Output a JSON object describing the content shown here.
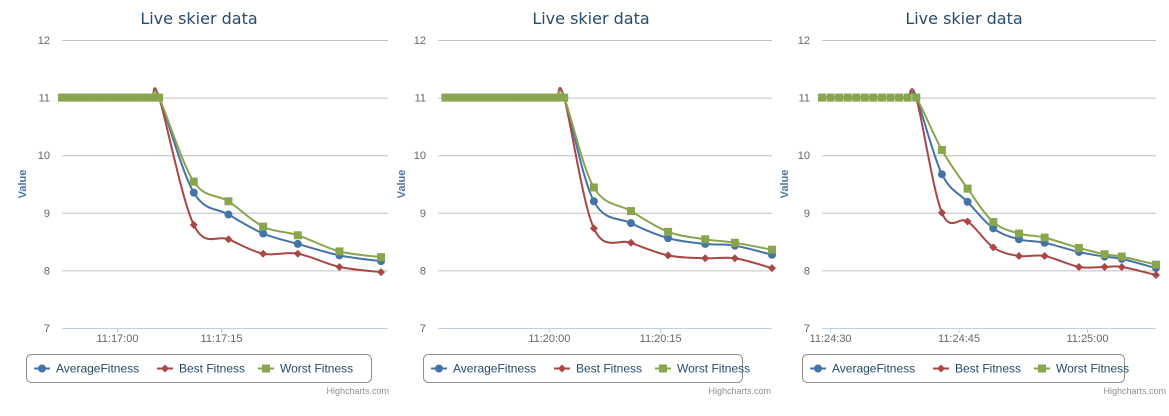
{
  "colors": {
    "average": "#4572a7",
    "best": "#aa4643",
    "worst": "#89a54e"
  },
  "chart_data": [
    {
      "type": "line",
      "title": "Live skier data",
      "ylabel": "Value",
      "ylim": [
        7,
        12
      ],
      "yticks": [
        "7",
        "8",
        "9",
        "10",
        "11",
        "12"
      ],
      "xlim": [
        "11:16:52",
        "11:17:39"
      ],
      "xticks": [
        {
          "t": "11:17:00",
          "label": "11:17:00"
        },
        {
          "t": "11:17:15",
          "label": "11:17:15"
        }
      ],
      "legend": "bottom",
      "credits": "Highcharts.com",
      "series": [
        {
          "name": "AverageFitness",
          "marker": "circle",
          "color": "#4572a7",
          "points": [
            [
              "11:16:52",
              11
            ],
            [
              "11:16:53",
              11
            ],
            [
              "11:16:54",
              11
            ],
            [
              "11:16:55",
              11
            ],
            [
              "11:16:56",
              11
            ],
            [
              "11:16:57",
              11
            ],
            [
              "11:16:58",
              11
            ],
            [
              "11:16:59",
              11
            ],
            [
              "11:17:00",
              11
            ],
            [
              "11:17:01",
              11
            ],
            [
              "11:17:02",
              11
            ],
            [
              "11:17:03",
              11
            ],
            [
              "11:17:04",
              11
            ],
            [
              "11:17:05",
              11
            ],
            [
              "11:17:06",
              11
            ],
            [
              "11:17:11",
              9.35
            ],
            [
              "11:17:16",
              8.97
            ],
            [
              "11:17:21",
              8.64
            ],
            [
              "11:17:26",
              8.46
            ],
            [
              "11:17:32",
              8.26
            ],
            [
              "11:17:38",
              8.16
            ]
          ]
        },
        {
          "name": "Best Fitness",
          "marker": "diamond",
          "color": "#aa4643",
          "points": [
            [
              "11:16:52",
              11
            ],
            [
              "11:16:53",
              11
            ],
            [
              "11:16:54",
              11
            ],
            [
              "11:16:55",
              11
            ],
            [
              "11:16:56",
              11
            ],
            [
              "11:16:57",
              11
            ],
            [
              "11:16:58",
              11
            ],
            [
              "11:16:59",
              11
            ],
            [
              "11:17:00",
              11
            ],
            [
              "11:17:01",
              11
            ],
            [
              "11:17:02",
              11
            ],
            [
              "11:17:03",
              11
            ],
            [
              "11:17:04",
              11
            ],
            [
              "11:17:05",
              11
            ],
            [
              "11:17:06",
              11
            ],
            [
              "11:17:11",
              8.79
            ],
            [
              "11:17:16",
              8.54
            ],
            [
              "11:17:21",
              8.29
            ],
            [
              "11:17:26",
              8.29
            ],
            [
              "11:17:32",
              8.06
            ],
            [
              "11:17:38",
              7.97
            ]
          ]
        },
        {
          "name": "Worst Fitness",
          "marker": "square",
          "color": "#89a54e",
          "points": [
            [
              "11:16:52",
              11
            ],
            [
              "11:16:53",
              11
            ],
            [
              "11:16:54",
              11
            ],
            [
              "11:16:55",
              11
            ],
            [
              "11:16:56",
              11
            ],
            [
              "11:16:57",
              11
            ],
            [
              "11:16:58",
              11
            ],
            [
              "11:16:59",
              11
            ],
            [
              "11:17:00",
              11
            ],
            [
              "11:17:01",
              11
            ],
            [
              "11:17:02",
              11
            ],
            [
              "11:17:03",
              11
            ],
            [
              "11:17:04",
              11
            ],
            [
              "11:17:05",
              11
            ],
            [
              "11:17:06",
              11
            ],
            [
              "11:17:11",
              9.54
            ],
            [
              "11:17:16",
              9.2
            ],
            [
              "11:17:21",
              8.76
            ],
            [
              "11:17:26",
              8.61
            ],
            [
              "11:17:32",
              8.33
            ],
            [
              "11:17:38",
              8.23
            ]
          ]
        }
      ]
    },
    {
      "type": "line",
      "title": "Live skier data",
      "ylabel": "Value",
      "ylim": [
        7,
        12
      ],
      "yticks": [
        "7",
        "8",
        "9",
        "10",
        "11",
        "12"
      ],
      "xlim": [
        "11:19:45",
        "11:20:30"
      ],
      "xticks": [
        {
          "t": "11:20:00",
          "label": "11:20:00"
        },
        {
          "t": "11:20:15",
          "label": "11:20:15"
        }
      ],
      "legend": "bottom",
      "credits": "Highcharts.com",
      "series": [
        {
          "name": "AverageFitness",
          "marker": "circle",
          "color": "#4572a7",
          "points": [
            [
              "11:19:46",
              11
            ],
            [
              "11:19:47",
              11
            ],
            [
              "11:19:48",
              11
            ],
            [
              "11:19:49",
              11
            ],
            [
              "11:19:50",
              11
            ],
            [
              "11:19:51",
              11
            ],
            [
              "11:19:52",
              11
            ],
            [
              "11:19:53",
              11
            ],
            [
              "11:19:54",
              11
            ],
            [
              "11:19:55",
              11
            ],
            [
              "11:19:56",
              11
            ],
            [
              "11:19:57",
              11
            ],
            [
              "11:19:58",
              11
            ],
            [
              "11:19:59",
              11
            ],
            [
              "11:20:00",
              11
            ],
            [
              "11:20:01",
              11
            ],
            [
              "11:20:02",
              11
            ],
            [
              "11:20:06",
              9.2
            ],
            [
              "11:20:11",
              8.82
            ],
            [
              "11:20:16",
              8.56
            ],
            [
              "11:20:21",
              8.46
            ],
            [
              "11:20:25",
              8.43
            ],
            [
              "11:20:30",
              8.27
            ]
          ]
        },
        {
          "name": "Best Fitness",
          "marker": "diamond",
          "color": "#aa4643",
          "points": [
            [
              "11:19:46",
              11
            ],
            [
              "11:19:47",
              11
            ],
            [
              "11:19:48",
              11
            ],
            [
              "11:19:49",
              11
            ],
            [
              "11:19:50",
              11
            ],
            [
              "11:19:51",
              11
            ],
            [
              "11:19:52",
              11
            ],
            [
              "11:19:53",
              11
            ],
            [
              "11:19:54",
              11
            ],
            [
              "11:19:55",
              11
            ],
            [
              "11:19:56",
              11
            ],
            [
              "11:19:57",
              11
            ],
            [
              "11:19:58",
              11
            ],
            [
              "11:19:59",
              11
            ],
            [
              "11:20:00",
              11
            ],
            [
              "11:20:01",
              11
            ],
            [
              "11:20:02",
              11
            ],
            [
              "11:20:06",
              8.73
            ],
            [
              "11:20:11",
              8.48
            ],
            [
              "11:20:16",
              8.26
            ],
            [
              "11:20:21",
              8.21
            ],
            [
              "11:20:25",
              8.21
            ],
            [
              "11:20:30",
              8.04
            ]
          ]
        },
        {
          "name": "Worst Fitness",
          "marker": "square",
          "color": "#89a54e",
          "points": [
            [
              "11:19:46",
              11
            ],
            [
              "11:19:47",
              11
            ],
            [
              "11:19:48",
              11
            ],
            [
              "11:19:49",
              11
            ],
            [
              "11:19:50",
              11
            ],
            [
              "11:19:51",
              11
            ],
            [
              "11:19:52",
              11
            ],
            [
              "11:19:53",
              11
            ],
            [
              "11:19:54",
              11
            ],
            [
              "11:19:55",
              11
            ],
            [
              "11:19:56",
              11
            ],
            [
              "11:19:57",
              11
            ],
            [
              "11:19:58",
              11
            ],
            [
              "11:19:59",
              11
            ],
            [
              "11:20:00",
              11
            ],
            [
              "11:20:01",
              11
            ],
            [
              "11:20:02",
              11
            ],
            [
              "11:20:06",
              9.44
            ],
            [
              "11:20:11",
              9.03
            ],
            [
              "11:20:16",
              8.67
            ],
            [
              "11:20:21",
              8.54
            ],
            [
              "11:20:25",
              8.48
            ],
            [
              "11:20:30",
              8.36
            ]
          ]
        }
      ]
    },
    {
      "type": "line",
      "title": "Live skier data",
      "ylabel": "Value",
      "ylim": [
        7,
        12
      ],
      "yticks": [
        "7",
        "8",
        "9",
        "10",
        "11",
        "12"
      ],
      "xlim": [
        "11:24:29",
        "11:25:08"
      ],
      "xticks": [
        {
          "t": "11:24:30",
          "label": "11:24:30"
        },
        {
          "t": "11:24:45",
          "label": "11:24:45"
        },
        {
          "t": "11:25:00",
          "label": "11:25:00"
        }
      ],
      "legend": "bottom",
      "credits": "Highcharts.com",
      "series": [
        {
          "name": "AverageFitness",
          "marker": "circle",
          "color": "#4572a7",
          "points": [
            [
              "11:24:29",
              11
            ],
            [
              "11:24:30",
              11
            ],
            [
              "11:24:31",
              11
            ],
            [
              "11:24:32",
              11
            ],
            [
              "11:24:33",
              11
            ],
            [
              "11:24:34",
              11
            ],
            [
              "11:24:35",
              11
            ],
            [
              "11:24:36",
              11
            ],
            [
              "11:24:37",
              11
            ],
            [
              "11:24:38",
              11
            ],
            [
              "11:24:39",
              11
            ],
            [
              "11:24:40",
              11
            ],
            [
              "11:24:43",
              9.67
            ],
            [
              "11:24:46",
              9.19
            ],
            [
              "11:24:49",
              8.73
            ],
            [
              "11:24:52",
              8.54
            ],
            [
              "11:24:55",
              8.48
            ],
            [
              "11:24:59",
              8.32
            ],
            [
              "11:25:02",
              8.24
            ],
            [
              "11:25:04",
              8.2
            ],
            [
              "11:25:08",
              8.04
            ]
          ]
        },
        {
          "name": "Best Fitness",
          "marker": "diamond",
          "color": "#aa4643",
          "points": [
            [
              "11:24:29",
              11
            ],
            [
              "11:24:30",
              11
            ],
            [
              "11:24:31",
              11
            ],
            [
              "11:24:32",
              11
            ],
            [
              "11:24:33",
              11
            ],
            [
              "11:24:34",
              11
            ],
            [
              "11:24:35",
              11
            ],
            [
              "11:24:36",
              11
            ],
            [
              "11:24:37",
              11
            ],
            [
              "11:24:38",
              11
            ],
            [
              "11:24:39",
              11
            ],
            [
              "11:24:40",
              11
            ],
            [
              "11:24:43",
              9.0
            ],
            [
              "11:24:46",
              8.85
            ],
            [
              "11:24:49",
              8.4
            ],
            [
              "11:24:52",
              8.25
            ],
            [
              "11:24:55",
              8.25
            ],
            [
              "11:24:59",
              8.06
            ],
            [
              "11:25:02",
              8.06
            ],
            [
              "11:25:04",
              8.06
            ],
            [
              "11:25:08",
              7.92
            ]
          ]
        },
        {
          "name": "Worst Fitness",
          "marker": "square",
          "color": "#89a54e",
          "points": [
            [
              "11:24:29",
              11
            ],
            [
              "11:24:30",
              11
            ],
            [
              "11:24:31",
              11
            ],
            [
              "11:24:32",
              11
            ],
            [
              "11:24:33",
              11
            ],
            [
              "11:24:34",
              11
            ],
            [
              "11:24:35",
              11
            ],
            [
              "11:24:36",
              11
            ],
            [
              "11:24:37",
              11
            ],
            [
              "11:24:38",
              11
            ],
            [
              "11:24:39",
              11
            ],
            [
              "11:24:40",
              11
            ],
            [
              "11:24:43",
              10.09
            ],
            [
              "11:24:46",
              9.42
            ],
            [
              "11:24:49",
              8.84
            ],
            [
              "11:24:52",
              8.64
            ],
            [
              "11:24:55",
              8.57
            ],
            [
              "11:24:59",
              8.39
            ],
            [
              "11:25:02",
              8.28
            ],
            [
              "11:25:04",
              8.24
            ],
            [
              "11:25:08",
              8.1
            ]
          ]
        }
      ]
    }
  ]
}
